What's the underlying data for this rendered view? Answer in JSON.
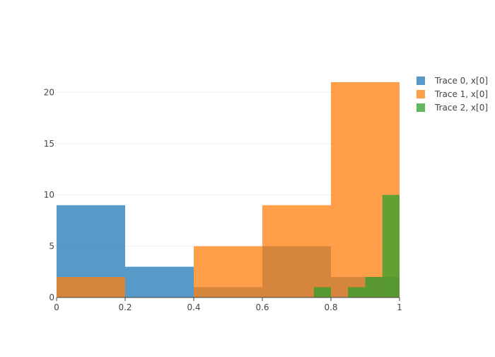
{
  "chart_data": {
    "type": "histogram",
    "title": "",
    "xlabel": "",
    "ylabel": "",
    "xlim": [
      0,
      1
    ],
    "ylim": [
      0,
      22.1
    ],
    "grid": true,
    "barmode": "overlay",
    "legend_position": "top-right",
    "x_ticks": [
      "0",
      "0.2",
      "0.4",
      "0.6",
      "0.8",
      "1"
    ],
    "y_ticks": [
      "0",
      "5",
      "10",
      "15",
      "20"
    ],
    "x_tick_values": [
      0,
      0.2,
      0.4,
      0.6,
      0.8,
      1
    ],
    "y_tick_values": [
      0,
      5,
      10,
      15,
      20
    ],
    "series": [
      {
        "name": "Trace 0, x[0]",
        "color": "#1f77b4",
        "bins": [
          {
            "x0": 0.0,
            "x1": 0.2,
            "count": 9
          },
          {
            "x0": 0.2,
            "x1": 0.4,
            "count": 3
          },
          {
            "x0": 0.4,
            "x1": 0.6,
            "count": 1
          },
          {
            "x0": 0.6,
            "x1": 0.8,
            "count": 5
          },
          {
            "x0": 0.8,
            "x1": 1.0,
            "count": 2
          }
        ]
      },
      {
        "name": "Trace 1, x[0]",
        "color": "#ff7f0e",
        "bins": [
          {
            "x0": 0.0,
            "x1": 0.2,
            "count": 2
          },
          {
            "x0": 0.2,
            "x1": 0.4,
            "count": 0
          },
          {
            "x0": 0.4,
            "x1": 0.6,
            "count": 5
          },
          {
            "x0": 0.6,
            "x1": 0.8,
            "count": 9
          },
          {
            "x0": 0.8,
            "x1": 1.0,
            "count": 21
          }
        ]
      },
      {
        "name": "Trace 2, x[0]",
        "color": "#2ca02c",
        "bins": [
          {
            "x0": 0.75,
            "x1": 0.8,
            "count": 1
          },
          {
            "x0": 0.85,
            "x1": 0.9,
            "count": 1
          },
          {
            "x0": 0.9,
            "x1": 0.95,
            "count": 2
          },
          {
            "x0": 0.95,
            "x1": 1.0,
            "count": 10
          }
        ]
      }
    ]
  }
}
